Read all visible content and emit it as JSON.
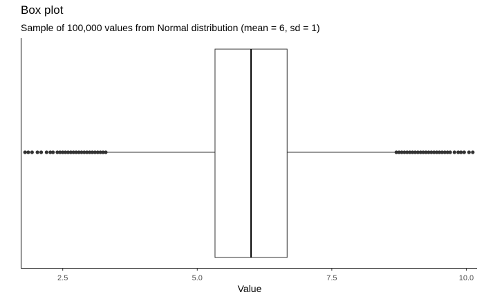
{
  "chart_data": {
    "type": "boxplot",
    "title": "Box plot",
    "subtitle": "Sample of 100,000 values from Normal distribution (mean = 6, sd = 1)",
    "xlabel": "Value",
    "ylabel": "",
    "xlim": [
      1.72,
      10.2
    ],
    "xticks": [
      2.5,
      5.0,
      7.5,
      10.0
    ],
    "xtick_labels": [
      "2.5",
      "5.0",
      "7.5",
      "10.0"
    ],
    "grid": false,
    "box": {
      "q1": 5.33,
      "median": 6.0,
      "q3": 6.67,
      "whisker_low": 3.31,
      "whisker_high": 8.69
    },
    "outliers_low": [
      1.8,
      1.86,
      1.93,
      2.03,
      2.1,
      2.2,
      2.27,
      2.32,
      2.4,
      2.45,
      2.5,
      2.55,
      2.6,
      2.65,
      2.7,
      2.75,
      2.8,
      2.85,
      2.9,
      2.95,
      3.0,
      3.05,
      3.1,
      3.15,
      3.2,
      3.25,
      3.3
    ],
    "outliers_high": [
      8.7,
      8.75,
      8.8,
      8.85,
      8.9,
      8.95,
      9.0,
      9.05,
      9.1,
      9.15,
      9.2,
      9.25,
      9.3,
      9.35,
      9.4,
      9.45,
      9.5,
      9.55,
      9.6,
      9.65,
      9.7,
      9.78,
      9.85,
      9.9,
      9.96,
      10.05,
      10.12
    ]
  }
}
